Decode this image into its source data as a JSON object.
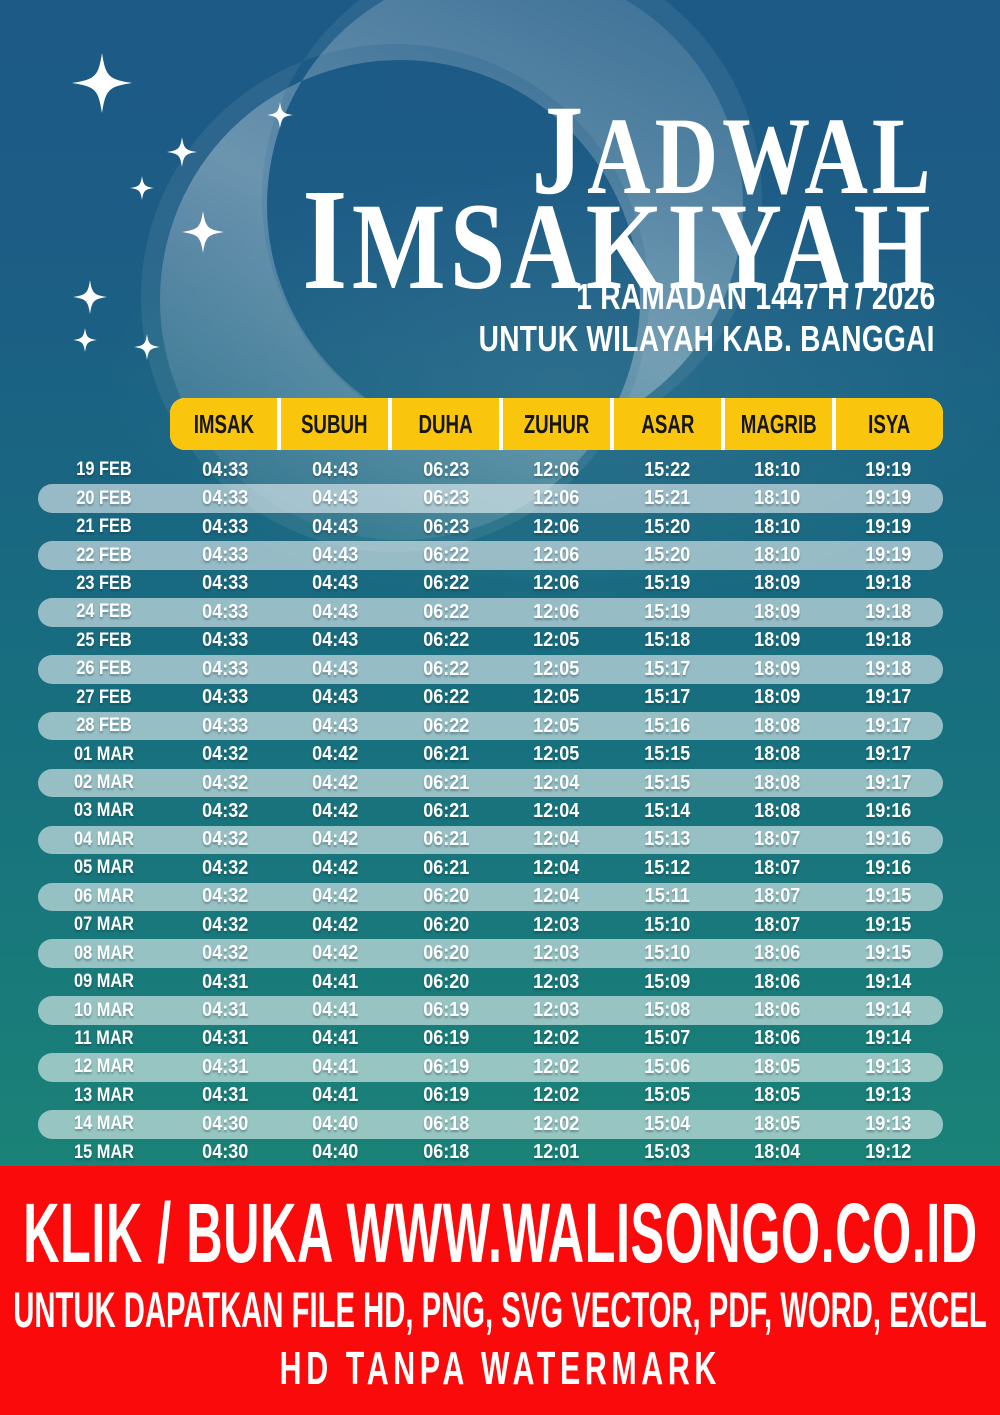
{
  "header": {
    "title_line1": "JADWAL",
    "title_line2": "IMSAKIYAH",
    "subtitle_line1": "1 RAMADAN 1447 H / 2026",
    "subtitle_line2": "UNTUK WILAYAH KAB. BANGGAI"
  },
  "table": {
    "columns": [
      "IMSAK",
      "SUBUH",
      "DUHA",
      "ZUHUR",
      "ASAR",
      "MAGRIB",
      "ISYA"
    ],
    "rows": [
      {
        "date": "19 FEB",
        "times": [
          "04:33",
          "04:43",
          "06:23",
          "12:06",
          "15:22",
          "18:10",
          "19:19"
        ]
      },
      {
        "date": "20 FEB",
        "times": [
          "04:33",
          "04:43",
          "06:23",
          "12:06",
          "15:21",
          "18:10",
          "19:19"
        ]
      },
      {
        "date": "21 FEB",
        "times": [
          "04:33",
          "04:43",
          "06:23",
          "12:06",
          "15:20",
          "18:10",
          "19:19"
        ]
      },
      {
        "date": "22 FEB",
        "times": [
          "04:33",
          "04:43",
          "06:22",
          "12:06",
          "15:20",
          "18:10",
          "19:19"
        ]
      },
      {
        "date": "23 FEB",
        "times": [
          "04:33",
          "04:43",
          "06:22",
          "12:06",
          "15:19",
          "18:09",
          "19:18"
        ]
      },
      {
        "date": "24 FEB",
        "times": [
          "04:33",
          "04:43",
          "06:22",
          "12:06",
          "15:19",
          "18:09",
          "19:18"
        ]
      },
      {
        "date": "25 FEB",
        "times": [
          "04:33",
          "04:43",
          "06:22",
          "12:05",
          "15:18",
          "18:09",
          "19:18"
        ]
      },
      {
        "date": "26 FEB",
        "times": [
          "04:33",
          "04:43",
          "06:22",
          "12:05",
          "15:17",
          "18:09",
          "19:18"
        ]
      },
      {
        "date": "27 FEB",
        "times": [
          "04:33",
          "04:43",
          "06:22",
          "12:05",
          "15:17",
          "18:09",
          "19:17"
        ]
      },
      {
        "date": "28 FEB",
        "times": [
          "04:33",
          "04:43",
          "06:22",
          "12:05",
          "15:16",
          "18:08",
          "19:17"
        ]
      },
      {
        "date": "01 MAR",
        "times": [
          "04:32",
          "04:42",
          "06:21",
          "12:05",
          "15:15",
          "18:08",
          "19:17"
        ]
      },
      {
        "date": "02 MAR",
        "times": [
          "04:32",
          "04:42",
          "06:21",
          "12:04",
          "15:15",
          "18:08",
          "19:17"
        ]
      },
      {
        "date": "03 MAR",
        "times": [
          "04:32",
          "04:42",
          "06:21",
          "12:04",
          "15:14",
          "18:08",
          "19:16"
        ]
      },
      {
        "date": "04 MAR",
        "times": [
          "04:32",
          "04:42",
          "06:21",
          "12:04",
          "15:13",
          "18:07",
          "19:16"
        ]
      },
      {
        "date": "05 MAR",
        "times": [
          "04:32",
          "04:42",
          "06:21",
          "12:04",
          "15:12",
          "18:07",
          "19:16"
        ]
      },
      {
        "date": "06 MAR",
        "times": [
          "04:32",
          "04:42",
          "06:20",
          "12:04",
          "15:11",
          "18:07",
          "19:15"
        ]
      },
      {
        "date": "07 MAR",
        "times": [
          "04:32",
          "04:42",
          "06:20",
          "12:03",
          "15:10",
          "18:07",
          "19:15"
        ]
      },
      {
        "date": "08 MAR",
        "times": [
          "04:32",
          "04:42",
          "06:20",
          "12:03",
          "15:10",
          "18:06",
          "19:15"
        ]
      },
      {
        "date": "09 MAR",
        "times": [
          "04:31",
          "04:41",
          "06:20",
          "12:03",
          "15:09",
          "18:06",
          "19:14"
        ]
      },
      {
        "date": "10 MAR",
        "times": [
          "04:31",
          "04:41",
          "06:19",
          "12:03",
          "15:08",
          "18:06",
          "19:14"
        ]
      },
      {
        "date": "11 MAR",
        "times": [
          "04:31",
          "04:41",
          "06:19",
          "12:02",
          "15:07",
          "18:06",
          "19:14"
        ]
      },
      {
        "date": "12 MAR",
        "times": [
          "04:31",
          "04:41",
          "06:19",
          "12:02",
          "15:06",
          "18:05",
          "19:13"
        ]
      },
      {
        "date": "13 MAR",
        "times": [
          "04:31",
          "04:41",
          "06:19",
          "12:02",
          "15:05",
          "18:05",
          "19:13"
        ]
      },
      {
        "date": "14 MAR",
        "times": [
          "04:30",
          "04:40",
          "06:18",
          "12:02",
          "15:04",
          "18:05",
          "19:13"
        ]
      },
      {
        "date": "15 MAR",
        "times": [
          "04:30",
          "04:40",
          "06:18",
          "12:01",
          "15:03",
          "18:04",
          "19:12"
        ]
      }
    ]
  },
  "footer": {
    "line1": "KLIK / BUKA WWW.WALISONGO.CO.ID",
    "line2": "UNTUK DAPATKAN FILE HD, PNG, SVG VECTOR, PDF, WORD, EXCEL",
    "line3": "HD TANPA WATERMARK"
  },
  "colors": {
    "bg_top": "#1D5A86",
    "bg_mid": "#17707E",
    "bg_bottom": "#1A8277",
    "accent_yellow": "#F9C60D",
    "footer_red": "#FA0A0A",
    "row_highlight": "rgba(255,255,255,0.55)",
    "header_text": "#161616",
    "table_text": "#FFFFFF"
  },
  "decor": {
    "moon_icon": "crescent-moon-icon",
    "star_icon": "sparkle-star-icon",
    "star_count": 8
  }
}
